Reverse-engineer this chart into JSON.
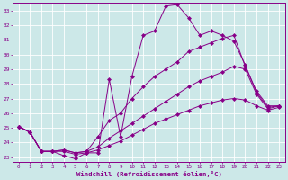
{
  "xlabel": "Windchill (Refroidissement éolien,°C)",
  "bg_color": "#cce8e8",
  "line_color": "#880088",
  "grid_color": "#ffffff",
  "xlim": [
    -0.5,
    23.5
  ],
  "ylim": [
    22.7,
    33.5
  ],
  "yticks": [
    23,
    24,
    25,
    26,
    27,
    28,
    29,
    30,
    31,
    32,
    33
  ],
  "xticks": [
    0,
    1,
    2,
    3,
    4,
    5,
    6,
    7,
    8,
    9,
    10,
    11,
    12,
    13,
    14,
    15,
    16,
    17,
    18,
    19,
    20,
    21,
    22,
    23
  ],
  "series": [
    [
      25.1,
      24.7,
      23.4,
      23.4,
      23.1,
      22.9,
      23.3,
      23.3,
      28.3,
      24.4,
      28.5,
      31.3,
      31.6,
      33.3,
      33.4,
      32.5,
      31.3,
      31.6,
      31.3,
      30.9,
      29.3,
      27.4,
      26.4,
      26.5
    ],
    [
      25.1,
      24.7,
      23.4,
      23.4,
      23.5,
      23.3,
      23.4,
      24.4,
      25.5,
      26.0,
      27.0,
      27.8,
      28.5,
      29.0,
      29.5,
      30.2,
      30.5,
      30.8,
      31.1,
      31.3,
      29.2,
      27.5,
      26.5,
      26.5
    ],
    [
      25.1,
      24.7,
      23.4,
      23.4,
      23.5,
      23.3,
      23.4,
      23.7,
      24.3,
      24.8,
      25.3,
      25.8,
      26.3,
      26.8,
      27.3,
      27.8,
      28.2,
      28.5,
      28.8,
      29.2,
      29.0,
      27.3,
      26.3,
      26.5
    ],
    [
      25.1,
      24.7,
      23.4,
      23.4,
      23.4,
      23.2,
      23.3,
      23.5,
      23.8,
      24.1,
      24.5,
      24.9,
      25.3,
      25.6,
      25.9,
      26.2,
      26.5,
      26.7,
      26.9,
      27.0,
      26.9,
      26.5,
      26.2,
      26.4
    ]
  ]
}
